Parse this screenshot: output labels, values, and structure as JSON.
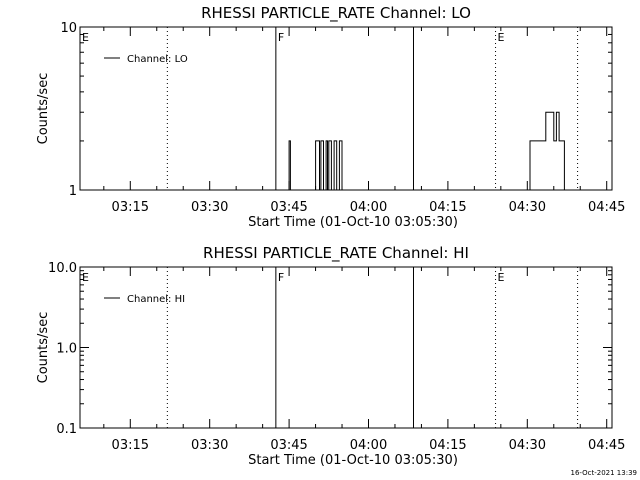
{
  "chart_data": [
    {
      "type": "line",
      "title": "RHESSI PARTICLE_RATE Channel: LO",
      "xlabel": "Start Time (01-Oct-10 03:05:30)",
      "ylabel": "Counts/sec",
      "yscale": "log",
      "ylim": [
        1,
        10
      ],
      "xlim": [
        "03:05:30",
        "04:46:00"
      ],
      "x_ticks": [
        "03:15",
        "03:30",
        "03:45",
        "04:00",
        "04:15",
        "04:30",
        "04:45"
      ],
      "y_ticks": [
        "1",
        "10"
      ],
      "legend": {
        "placement": "top-left",
        "entries": [
          "Channel: LO"
        ]
      },
      "grid": false,
      "event_markers": [
        {
          "label": "E",
          "time": "03:05:30",
          "style": "none"
        },
        {
          "label": "",
          "time": "03:22:00",
          "style": "dotted"
        },
        {
          "label": "F",
          "time": "03:42:30",
          "style": "solid"
        },
        {
          "label": "",
          "time": "04:08:30",
          "style": "solid"
        },
        {
          "label": "E",
          "time": "04:24:00",
          "style": "dotted"
        },
        {
          "label": "",
          "time": "04:39:30",
          "style": "dotted"
        }
      ],
      "series": [
        {
          "name": "Channel: LO",
          "points": [
            [
              "03:44:30",
              1
            ],
            [
              "03:45:00",
              2
            ],
            [
              "03:45:15",
              1
            ],
            [
              "03:49:30",
              1
            ],
            [
              "03:50:00",
              2
            ],
            [
              "03:50:30",
              2
            ],
            [
              "03:50:45",
              1
            ],
            [
              "03:51:00",
              2
            ],
            [
              "03:51:30",
              1
            ],
            [
              "03:52:00",
              2
            ],
            [
              "03:52:15",
              1
            ],
            [
              "03:52:30",
              2
            ],
            [
              "03:53:00",
              1
            ],
            [
              "03:53:30",
              2
            ],
            [
              "03:54:00",
              1
            ],
            [
              "03:54:30",
              2
            ],
            [
              "03:55:00",
              1
            ],
            [
              "04:30:00",
              1
            ],
            [
              "04:30:30",
              2
            ],
            [
              "04:31:00",
              2
            ],
            [
              "04:31:30",
              2
            ],
            [
              "04:33:00",
              2
            ],
            [
              "04:33:30",
              3
            ],
            [
              "04:34:30",
              3
            ],
            [
              "04:35:00",
              2
            ],
            [
              "04:35:30",
              3
            ],
            [
              "04:36:00",
              2
            ],
            [
              "04:36:30",
              2
            ],
            [
              "04:37:00",
              1
            ]
          ]
        }
      ]
    },
    {
      "type": "line",
      "title": "RHESSI PARTICLE_RATE Channel: HI",
      "xlabel": "Start Time (01-Oct-10 03:05:30)",
      "ylabel": "Counts/sec",
      "yscale": "log",
      "ylim": [
        0.1,
        10
      ],
      "xlim": [
        "03:05:30",
        "04:46:00"
      ],
      "x_ticks": [
        "03:15",
        "03:30",
        "03:45",
        "04:00",
        "04:15",
        "04:30",
        "04:45"
      ],
      "y_ticks": [
        "0.1",
        "1.0",
        "10.0"
      ],
      "legend": {
        "placement": "top-left",
        "entries": [
          "Channel: HI"
        ]
      },
      "grid": false,
      "event_markers": [
        {
          "label": "E",
          "time": "03:05:30",
          "style": "none"
        },
        {
          "label": "",
          "time": "03:22:00",
          "style": "dotted"
        },
        {
          "label": "F",
          "time": "03:42:30",
          "style": "solid"
        },
        {
          "label": "",
          "time": "04:08:30",
          "style": "solid"
        },
        {
          "label": "E",
          "time": "04:24:00",
          "style": "dotted"
        },
        {
          "label": "",
          "time": "04:39:30",
          "style": "dotted"
        }
      ],
      "series": [
        {
          "name": "Channel: HI",
          "points": []
        }
      ]
    }
  ],
  "footer": {
    "timestamp": "16-Oct-2021 13:39"
  }
}
